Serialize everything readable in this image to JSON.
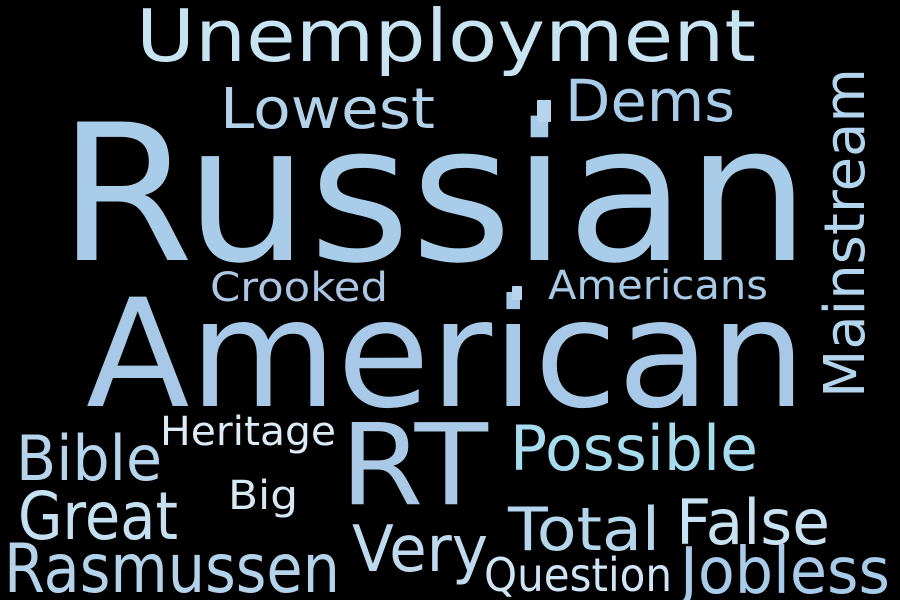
{
  "words": [
    {
      "id": "unemployment",
      "text": "Unemployment",
      "color": "#c8e4f2"
    },
    {
      "id": "russian",
      "text": "Russian",
      "color": "#a9cde8"
    },
    {
      "id": "american",
      "text": "American",
      "color": "#a7c8e6"
    },
    {
      "id": "mainstream",
      "text": "Mainstream",
      "color": "#b2d4ec"
    },
    {
      "id": "lowest",
      "text": "Lowest",
      "color": "#b3d2ea"
    },
    {
      "id": "dems",
      "text": "Dems",
      "color": "#a9cce8"
    },
    {
      "id": "crooked",
      "text": "Crooked",
      "color": "#acc6e4"
    },
    {
      "id": "americans",
      "text": "Americans",
      "color": "#a8cae6"
    },
    {
      "id": "rt",
      "text": "RT",
      "color": "#a9c9e6"
    },
    {
      "id": "possible",
      "text": "Possible",
      "color": "#a7dcee"
    },
    {
      "id": "bible",
      "text": "Bible",
      "color": "#b6d4ec"
    },
    {
      "id": "heritage",
      "text": "Heritage",
      "color": "#dcebf6"
    },
    {
      "id": "big",
      "text": "Big",
      "color": "#d6e8f4"
    },
    {
      "id": "great",
      "text": "Great",
      "color": "#c5e0f0"
    },
    {
      "id": "total",
      "text": "Total",
      "color": "#b5d7ee"
    },
    {
      "id": "false",
      "text": "False",
      "color": "#c8e2f2"
    },
    {
      "id": "very",
      "text": "Very",
      "color": "#bfd9ee"
    },
    {
      "id": "rasmussen",
      "text": "Rasmussen",
      "color": "#b4d2ea"
    },
    {
      "id": "question",
      "text": "Question",
      "color": "#cfe4f4"
    },
    {
      "id": "jobless",
      "text": "Jobless",
      "color": "#a9cbea"
    }
  ],
  "dots": [
    {
      "id": "dot-1",
      "color": "#b6d4ec"
    },
    {
      "id": "dot-2",
      "color": "#b6d4ec"
    }
  ]
}
